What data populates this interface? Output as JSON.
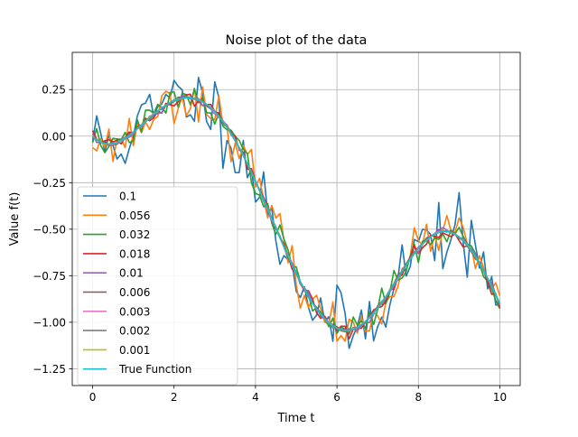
{
  "chart_data": {
    "type": "line",
    "title": "Noise plot of the data",
    "xlabel": "Time t",
    "ylabel": "Value f(t)",
    "xlim": [
      -0.5,
      10.5
    ],
    "ylim": [
      -1.34,
      0.45
    ],
    "xticks": [
      0,
      2,
      4,
      6,
      8,
      10
    ],
    "xtick_labels": [
      "0",
      "2",
      "4",
      "6",
      "8",
      "10"
    ],
    "yticks": [
      0.25,
      0.0,
      -0.25,
      -0.5,
      -0.75,
      -1.0,
      -1.25
    ],
    "ytick_labels": [
      "0.25",
      "0.00",
      "−0.25",
      "−0.50",
      "−0.75",
      "−1.00",
      "−1.25"
    ],
    "grid": true,
    "legend_position": "lower-left",
    "x_start": 0,
    "x_step": 0.1,
    "true_function": [
      0.0,
      -0.02,
      -0.032,
      -0.04,
      -0.043,
      -0.041,
      -0.035,
      -0.024,
      -0.011,
      0.005,
      0.022,
      0.04,
      0.059,
      0.078,
      0.098,
      0.116,
      0.134,
      0.151,
      0.166,
      0.179,
      0.19,
      0.198,
      0.203,
      0.206,
      0.205,
      0.202,
      0.195,
      0.184,
      0.17,
      0.153,
      0.132,
      0.107,
      0.079,
      0.048,
      0.014,
      -0.023,
      -0.063,
      -0.105,
      -0.149,
      -0.195,
      -0.243,
      -0.292,
      -0.342,
      -0.392,
      -0.443,
      -0.494,
      -0.545,
      -0.595,
      -0.644,
      -0.692,
      -0.738,
      -0.782,
      -0.823,
      -0.862,
      -0.897,
      -0.93,
      -0.958,
      -0.983,
      -1.004,
      -1.02,
      -1.032,
      -1.04,
      -1.044,
      -1.043,
      -1.038,
      -1.028,
      -1.014,
      -0.997,
      -0.975,
      -0.951,
      -0.924,
      -0.894,
      -0.862,
      -0.829,
      -0.795,
      -0.761,
      -0.727,
      -0.694,
      -0.662,
      -0.632,
      -0.604,
      -0.579,
      -0.558,
      -0.54,
      -0.526,
      -0.516,
      -0.512,
      -0.512,
      -0.517,
      -0.527,
      -0.542,
      -0.562,
      -0.586,
      -0.614,
      -0.647,
      -0.683,
      -0.722,
      -0.764,
      -0.808,
      -0.853,
      -0.9
    ],
    "series": [
      {
        "name": "0.1",
        "noise": 0.1,
        "color": "#1f77b4",
        "seed": 11
      },
      {
        "name": "0.056",
        "noise": 0.056,
        "color": "#ff7f0e",
        "seed": 23
      },
      {
        "name": "0.032",
        "noise": 0.032,
        "color": "#2ca02c",
        "seed": 37
      },
      {
        "name": "0.018",
        "noise": 0.018,
        "color": "#d62728",
        "seed": 41
      },
      {
        "name": "0.01",
        "noise": 0.01,
        "color": "#9467bd",
        "seed": 53
      },
      {
        "name": "0.006",
        "noise": 0.006,
        "color": "#8c564b",
        "seed": 67
      },
      {
        "name": "0.003",
        "noise": 0.003,
        "color": "#e377c2",
        "seed": 71
      },
      {
        "name": "0.002",
        "noise": 0.002,
        "color": "#7f7f7f",
        "seed": 83
      },
      {
        "name": "0.001",
        "noise": 0.001,
        "color": "#bcbd22",
        "seed": 97
      },
      {
        "name": "True Function",
        "noise": 0,
        "color": "#17becf",
        "seed": 0
      }
    ]
  }
}
